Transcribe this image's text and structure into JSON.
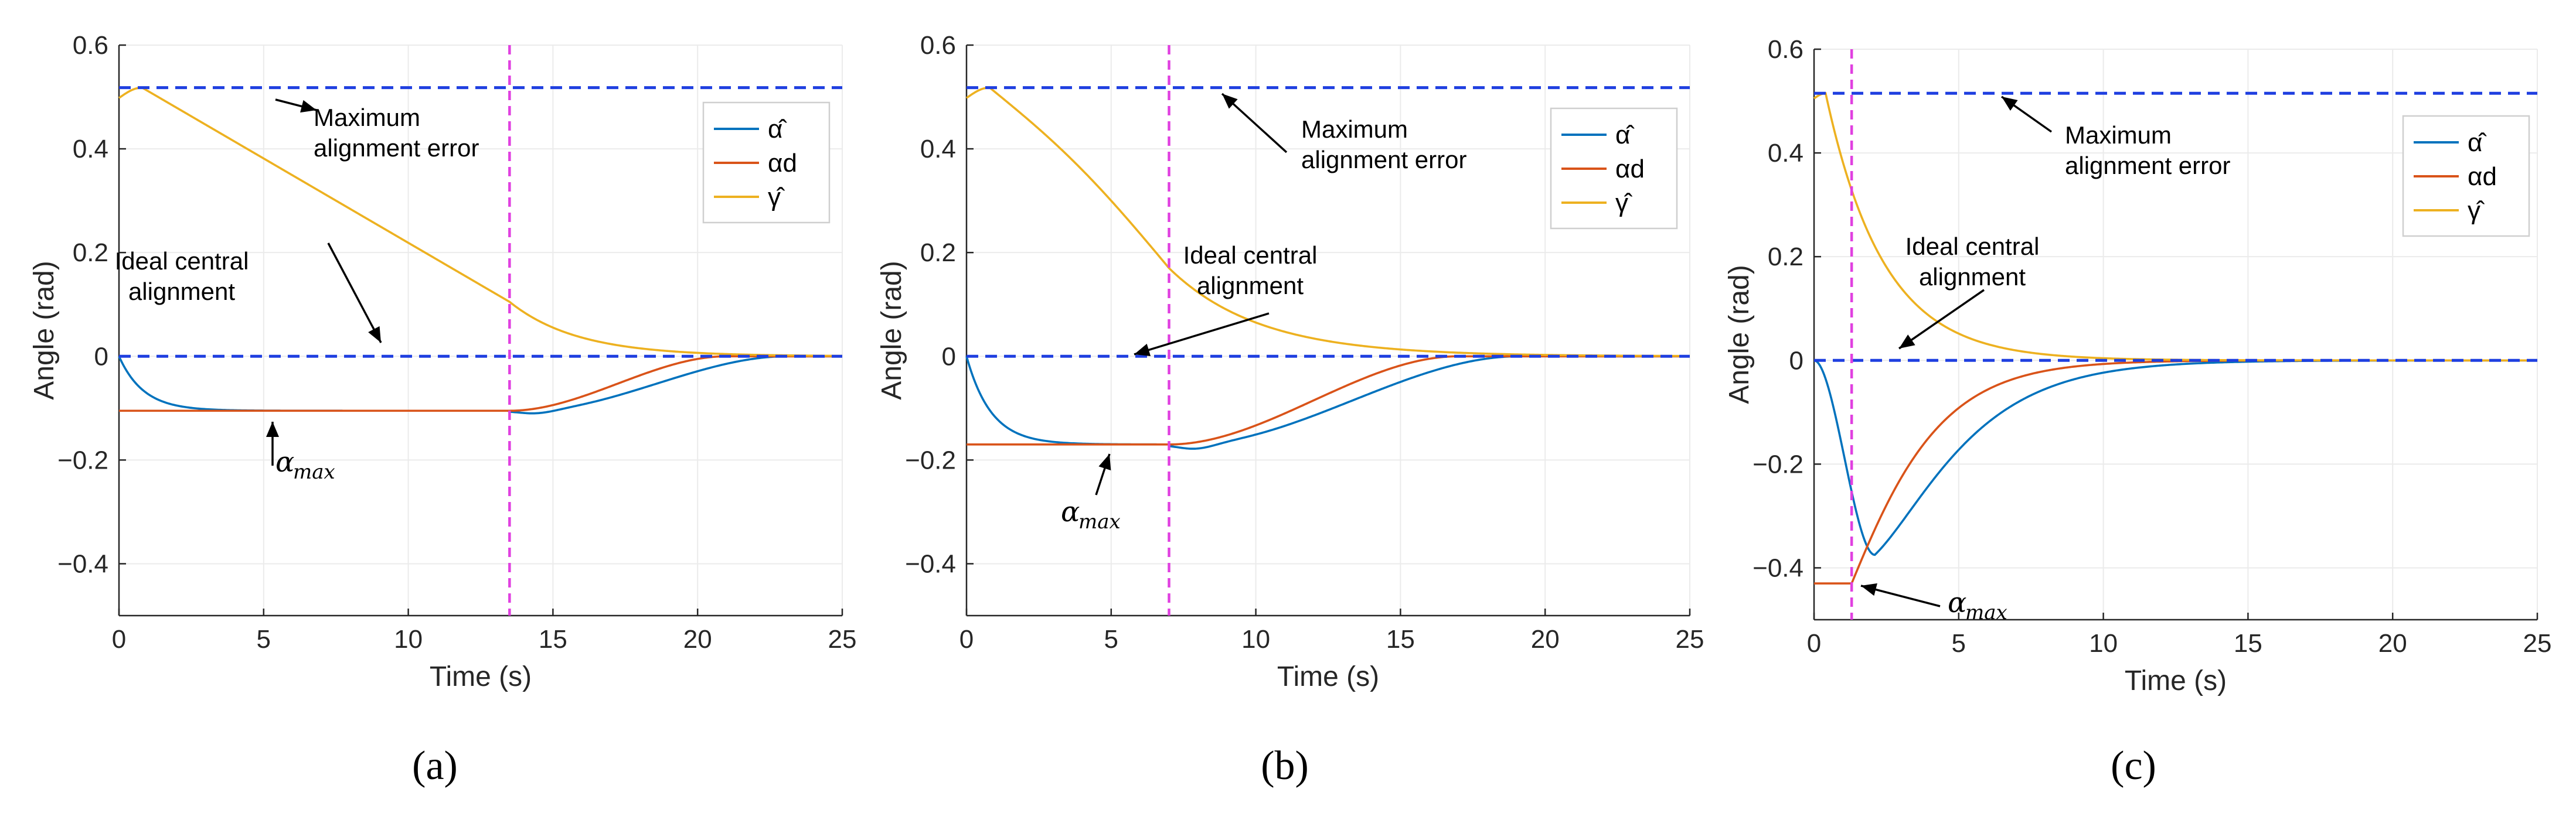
{
  "figure": {
    "panels_count": 3
  },
  "colors": {
    "alpha_hat": "#0072BD",
    "alpha_d": "#D95319",
    "gamma_hat": "#EDB120",
    "reference": "#1F3FE0",
    "switch": "#E040E0",
    "grid": "#EBEBEB",
    "axis": "#262626"
  },
  "chart_data": [
    {
      "type": "line",
      "caption": "(a)",
      "xlabel": "Time (s)",
      "ylabel": "Angle (rad)",
      "xlim": [
        0,
        25
      ],
      "ylim": [
        -0.5,
        0.6
      ],
      "xticks": [
        0,
        5,
        10,
        15,
        20,
        25
      ],
      "yticks": [
        -0.4,
        -0.2,
        0,
        0.2,
        0.4,
        0.6
      ],
      "ytick_labels": [
        "−0.4",
        "−0.2",
        "0",
        "0.2",
        "0.4",
        "0.6"
      ],
      "grid": true,
      "legend": {
        "position": "top-right",
        "entries": [
          "α̂",
          "αd",
          "γ̂"
        ]
      },
      "params": {
        "alpha_max": -0.105,
        "switch_time": 13.5,
        "gamma_peak": 0.518,
        "gamma_peak_time": 0.8,
        "gamma_switch_value": 0.105,
        "settle_time": 21
      },
      "reference_lines": [
        {
          "name": "Maximum alignment error",
          "y": 0.518
        },
        {
          "name": "Ideal central alignment",
          "y": 0
        }
      ],
      "switch_line_x": 13.5,
      "series": [
        {
          "name": "α̂",
          "key": "alpha_hat",
          "description": "starts at 0, decays to α_max ≈ -0.105 by t≈4 s, holds until t=13.5 s, then lags back to 0"
        },
        {
          "name": "αd",
          "key": "alpha_d",
          "description": "holds at α_max ≈ -0.105 until t=13.5 s, then rises smoothly to 0 by t≈21 s"
        },
        {
          "name": "γ̂",
          "key": "gamma_hat",
          "description": "starts ≈0.50, peaks ≈0.518 at t≈0.8 s, decreases nearly linearly to ≈0.105 at t=13.5 s, then decays to 0"
        }
      ],
      "annotations": {
        "max_error": [
          "Maximum",
          "alignment error"
        ],
        "ideal": [
          "Ideal central",
          "alignment"
        ],
        "alpha_max": "α",
        "alpha_max_sub": "max"
      }
    },
    {
      "type": "line",
      "caption": "(b)",
      "xlabel": "Time (s)",
      "ylabel": "Angle (rad)",
      "xlim": [
        0,
        25
      ],
      "ylim": [
        -0.5,
        0.6
      ],
      "xticks": [
        0,
        5,
        10,
        15,
        20,
        25
      ],
      "yticks": [
        -0.4,
        -0.2,
        0,
        0.2,
        0.4,
        0.6
      ],
      "ytick_labels": [
        "−0.4",
        "−0.2",
        "0",
        "0.2",
        "0.4",
        "0.6"
      ],
      "grid": true,
      "legend": {
        "position": "top-right",
        "entries": [
          "α̂",
          "αd",
          "γ̂"
        ]
      },
      "params": {
        "alpha_max": -0.17,
        "switch_time": 7.0,
        "gamma_peak": 0.518,
        "gamma_peak_time": 0.8,
        "gamma_switch_value": 0.17,
        "settle_time": 17
      },
      "reference_lines": [
        {
          "name": "Maximum alignment error",
          "y": 0.518
        },
        {
          "name": "Ideal central alignment",
          "y": 0
        }
      ],
      "switch_line_x": 7.0,
      "series": [
        {
          "name": "α̂",
          "key": "alpha_hat",
          "description": "starts at 0, decays to α_max ≈ -0.17 by t≈4 s, holds until t=7 s, then lags back to 0"
        },
        {
          "name": "αd",
          "key": "alpha_d",
          "description": "holds at α_max ≈ -0.17 until t=7 s, then rises smoothly to 0 by t≈17 s"
        },
        {
          "name": "γ̂",
          "key": "gamma_hat",
          "description": "starts ≈0.50, peaks ≈0.518 at t≈0.8 s, decreases to ≈0.17 at t=7 s, then decays to 0"
        }
      ],
      "annotations": {
        "max_error": [
          "Maximum",
          "alignment error"
        ],
        "ideal": [
          "Ideal central",
          "alignment"
        ],
        "alpha_max": "α",
        "alpha_max_sub": "max"
      }
    },
    {
      "type": "line",
      "caption": "(c)",
      "xlabel": "Time (s)",
      "ylabel": "Angle (rad)",
      "xlim": [
        0,
        25
      ],
      "ylim": [
        -0.5,
        0.6
      ],
      "xticks": [
        0,
        5,
        10,
        15,
        20,
        25
      ],
      "yticks": [
        -0.4,
        -0.2,
        0,
        0.2,
        0.4,
        0.6
      ],
      "ytick_labels": [
        "−0.4",
        "−0.2",
        "0",
        "0.2",
        "0.4",
        "0.6"
      ],
      "grid": true,
      "legend": {
        "position": "top-right",
        "entries": [
          "α̂",
          "αd",
          "γ̂"
        ]
      },
      "params": {
        "alpha_max": -0.43,
        "switch_time": 1.3,
        "gamma_peak": 0.515,
        "gamma_peak_time": 0.4,
        "settle_time": 11
      },
      "reference_lines": [
        {
          "name": "Maximum alignment error",
          "y": 0.515
        },
        {
          "name": "Ideal central alignment",
          "y": 0
        }
      ],
      "switch_line_x": 1.3,
      "series": [
        {
          "name": "α̂",
          "key": "alpha_hat",
          "description": "starts at 0, falls to a minimum ≈ -0.375 at t≈2.1 s, then rises to 0 by t≈11 s"
        },
        {
          "name": "αd",
          "key": "alpha_d",
          "description": "holds at α_max ≈ -0.43 until t=1.3 s, then rises to 0 by t≈10 s"
        },
        {
          "name": "γ̂",
          "key": "gamma_hat",
          "description": "starts ≈0.505, peaks ≈0.515 at t≈0.4 s, decays quickly to 0 by t≈10 s"
        }
      ],
      "annotations": {
        "max_error": [
          "Maximum",
          "alignment error"
        ],
        "ideal": [
          "Ideal central",
          "alignment"
        ],
        "alpha_max": "α",
        "alpha_max_sub": "max"
      }
    }
  ]
}
